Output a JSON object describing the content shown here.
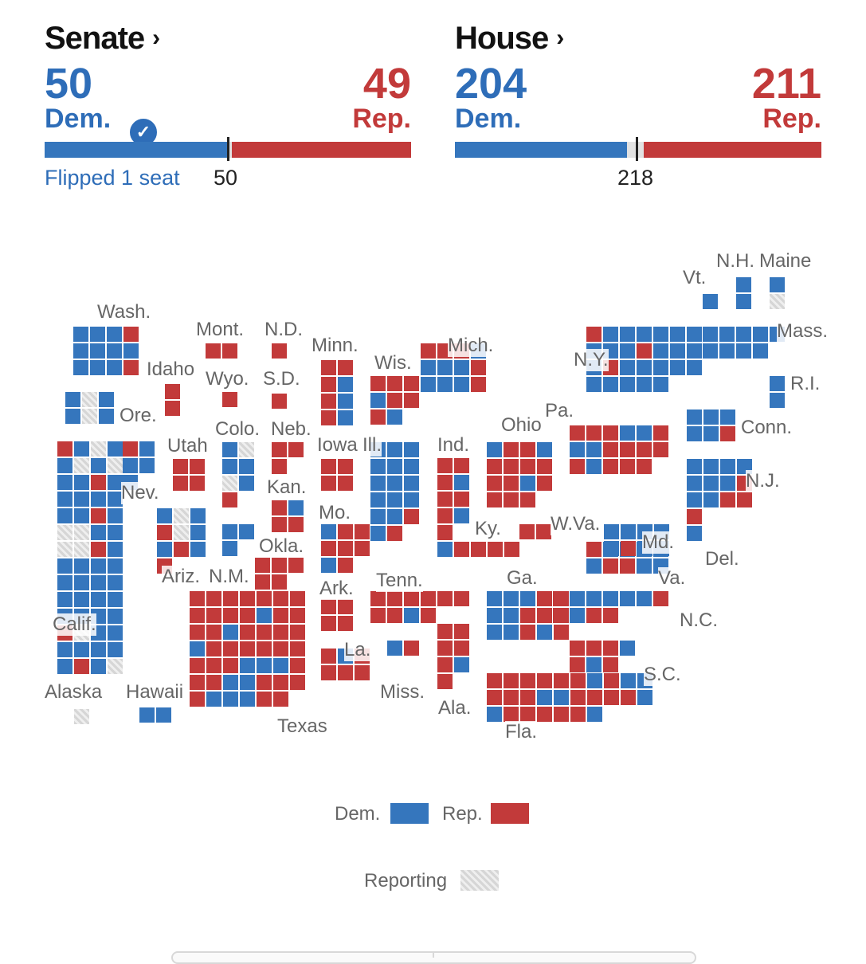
{
  "senate": {
    "title": "Senate",
    "dem_count": "50",
    "dem_label": "Dem.",
    "rep_count": "49",
    "rep_label": "Rep.",
    "control_mark": "50",
    "flipped_text": "Flipped 1 seat",
    "dem_seats": 50,
    "rep_seats": 49,
    "total_seats": 100,
    "dem_has_control": true
  },
  "house": {
    "title": "House",
    "dem_count": "204",
    "dem_label": "Dem.",
    "rep_count": "211",
    "rep_label": "Rep.",
    "control_mark": "218",
    "dem_seats": 204,
    "rep_seats": 211,
    "total_seats": 435
  },
  "chevron": "›",
  "colors": {
    "dem": "#3576bd",
    "rep": "#c23a3a",
    "reporting": "#d6d6d6"
  },
  "map": {
    "states": [
      {
        "abbr": "Wash.",
        "seats": "dddrdddddddr"
      },
      {
        "abbr": "Ore.",
        "seats": "dgddgd"
      },
      {
        "abbr": "Calif.",
        "seats": "rdgddgdgddrdddddddrdggddggrdddddddddddddddddrgdddddddrdg"
      },
      {
        "abbr": "Nev.",
        "seats": "rdddd"
      },
      {
        "abbr": "Idaho",
        "seats": "rr"
      },
      {
        "abbr": "Mont.",
        "seats": "rr"
      },
      {
        "abbr": "Wyo.",
        "seats": "r"
      },
      {
        "abbr": "Utah",
        "seats": "rrrr"
      },
      {
        "abbr": "Ariz.",
        "seats": "dgdrgddrdr"
      },
      {
        "abbr": "Colo.",
        "seats": "dgddgdr"
      },
      {
        "abbr": "N.M.",
        "seats": "ddd"
      },
      {
        "abbr": "N.D.",
        "seats": "r"
      },
      {
        "abbr": "S.D.",
        "seats": "r"
      },
      {
        "abbr": "Neb.",
        "seats": "rrr"
      },
      {
        "abbr": "Kan.",
        "seats": "rdrr"
      },
      {
        "abbr": "Okla.",
        "seats": "rrrrr"
      },
      {
        "abbr": "Texas",
        "seats": "rrrrrrrrrrrdrrrrdrrrrdrrrrrrrrrdddrrrddrrrrdddrr"
      },
      {
        "abbr": "Minn.",
        "seats": "rrrdrdrd"
      },
      {
        "abbr": "Iowa",
        "seats": "rrrr"
      },
      {
        "abbr": "Mo.",
        "seats": "drrrrrdr"
      },
      {
        "abbr": "Ark.",
        "seats": "rrrr"
      },
      {
        "abbr": "La.",
        "seats": "rdrrrr"
      },
      {
        "abbr": "Wis.",
        "seats": "rrrdrrrd"
      },
      {
        "abbr": "Ill.",
        "seats": "ddddddddddddddrdr"
      },
      {
        "abbr": "Mich.",
        "seats": "rrrddddrdddr"
      },
      {
        "abbr": "Ind.",
        "seats": "rrrdrrrdr"
      },
      {
        "abbr": "Ohio",
        "seats": "drrdrrrrrrdrrrr"
      },
      {
        "abbr": "Ky.",
        "seats": "drrrr"
      },
      {
        "abbr": "Tenn.",
        "seats": "rrrrrrrrdr"
      },
      {
        "abbr": "Miss.",
        "seats": "dr"
      },
      {
        "abbr": "Ala.",
        "seats": "rrrrrdr"
      },
      {
        "abbr": "Ga.",
        "seats": "dddrrddrrrddrdr"
      },
      {
        "abbr": "Fla.",
        "seats": "rrrrrrdrddrrrddrrrrddrrrrrd"
      },
      {
        "abbr": "S.C.",
        "seats": "rrrdrdr"
      },
      {
        "abbr": "N.C.",
        "seats": "rdddddrrdrr"
      },
      {
        "abbr": "Va.",
        "seats": "rdddddrrdd"
      },
      {
        "abbr": "W.Va.",
        "seats": "rr"
      },
      {
        "abbr": "Pa.",
        "seats": "rrrddrddrrrrrdrrr"
      },
      {
        "abbr": "N.Y.",
        "seats": "rdddddddddrddddrdddddddddd"
      },
      {
        "abbr": "Md.",
        "seats": "dddddrdd"
      },
      {
        "abbr": "Del.",
        "seats": "d"
      },
      {
        "abbr": "N.J.",
        "seats": "dddddddrddrrr"
      },
      {
        "abbr": "Conn.",
        "seats": "dddddr"
      },
      {
        "abbr": "R.I.",
        "seats": "dd"
      },
      {
        "abbr": "Mass.",
        "seats": "ddddddddd"
      },
      {
        "abbr": "Vt.",
        "seats": "d"
      },
      {
        "abbr": "N.H.",
        "seats": "dd"
      },
      {
        "abbr": "Maine",
        "seats": "dg"
      },
      {
        "abbr": "Alaska",
        "seats": "g"
      },
      {
        "abbr": "Hawaii",
        "seats": "dd"
      }
    ]
  },
  "legend": {
    "dem": "Dem.",
    "rep": "Rep.",
    "reporting": "Reporting"
  }
}
